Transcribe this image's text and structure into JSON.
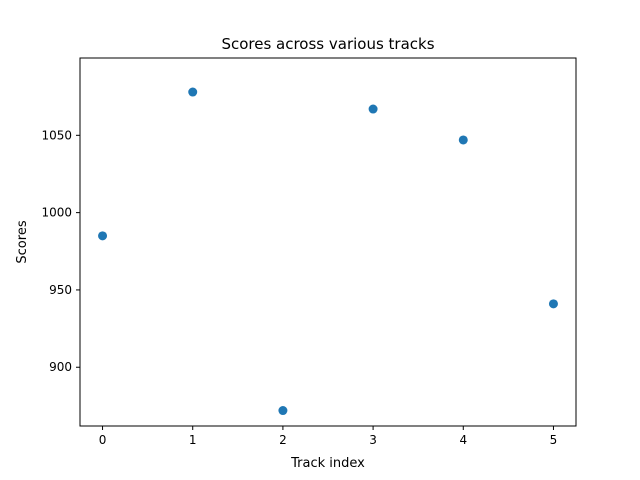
{
  "chart_data": {
    "type": "scatter",
    "title": "Scores across various tracks",
    "xlabel": "Track index",
    "ylabel": "Scores",
    "x": [
      0,
      1,
      2,
      3,
      4,
      5
    ],
    "y": [
      985,
      1078,
      872,
      1067,
      1047,
      941
    ],
    "xlim": [
      -0.25,
      5.25
    ],
    "ylim": [
      862,
      1100
    ],
    "xticks": [
      0,
      1,
      2,
      3,
      4,
      5
    ],
    "yticks": [
      900,
      950,
      1000,
      1050
    ],
    "grid": false,
    "marker_color": "#1f77b4"
  }
}
